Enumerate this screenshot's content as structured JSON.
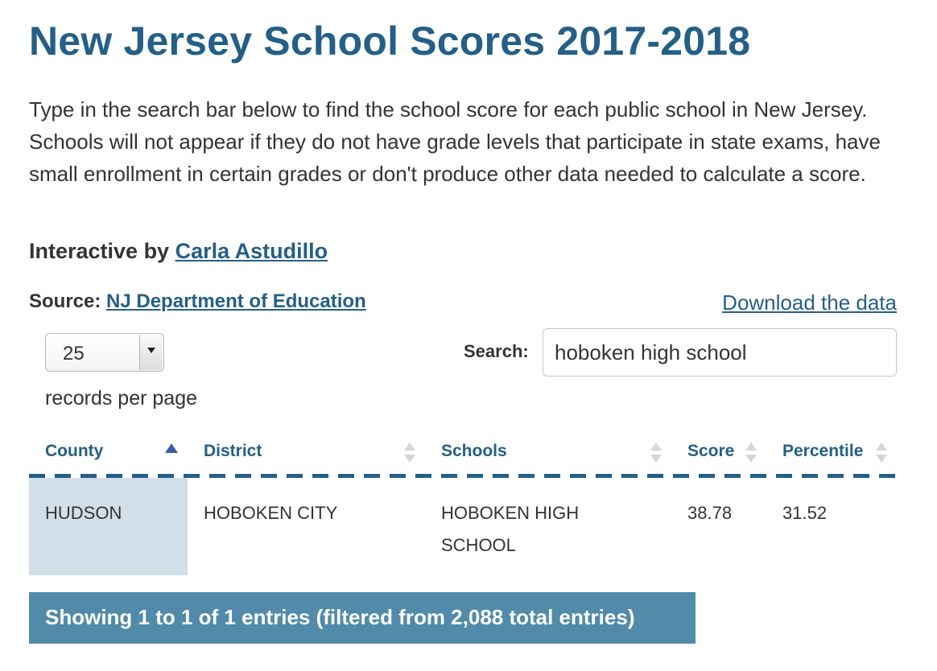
{
  "page": {
    "title": "New Jersey School Scores 2017-2018",
    "intro": "Type in the search bar below to find the school score for each public school in New Jersey. Schools will not appear if they do not have grade levels that participate in state exams, have small enrollment in certain grades or don't produce other data needed to calculate a score.",
    "byline_prefix": "Interactive by ",
    "byline_author": "Carla Astudillo",
    "source_label": "Source: ",
    "source_link": "NJ Department of Education",
    "download_link": "Download the data"
  },
  "controls": {
    "records_per_page_value": "25",
    "records_per_page_label": "records per page",
    "search_label": "Search:",
    "search_value": "hoboken high school"
  },
  "table": {
    "columns": [
      "County",
      "District",
      "Schools",
      "Score",
      "Percentile"
    ],
    "sorted_column": "County",
    "sort_direction": "ascending",
    "rows": [
      {
        "county": "HUDSON",
        "district": "HOBOKEN CITY",
        "school": "HOBOKEN HIGH SCHOOL",
        "score": "38.78",
        "percentile": "31.52"
      }
    ]
  },
  "footer": {
    "info": "Showing 1 to 1 of 1 entries (filtered from 2,088 total entries)"
  },
  "colors": {
    "accent": "#245f87",
    "sorted_cell": "#d2dfe8",
    "info_bar": "#518ba9"
  }
}
